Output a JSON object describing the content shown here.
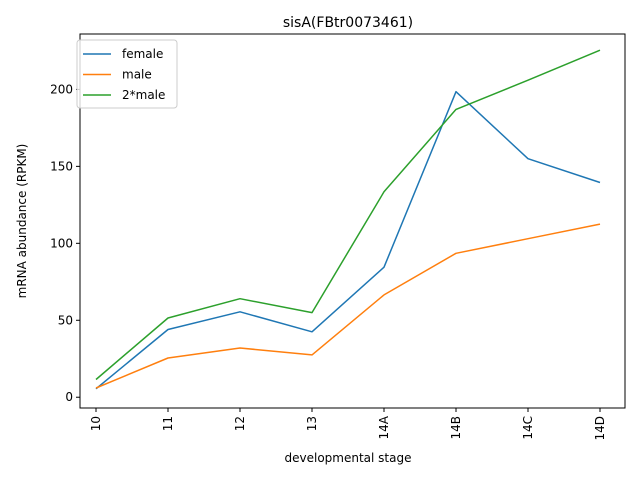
{
  "chart_data": {
    "type": "line",
    "title": "sisA(FBtr0073461)",
    "xlabel": "developmental stage",
    "ylabel": "mRNA abundance (RPKM)",
    "categories": [
      "10",
      "11",
      "12",
      "13",
      "14A",
      "14B",
      "14C",
      "14D"
    ],
    "ylim": [
      -7,
      236
    ],
    "yticks": [
      0,
      50,
      100,
      150,
      200
    ],
    "grid": false,
    "legend_position": "top-left",
    "series": [
      {
        "name": "female",
        "color": "#1f77b4",
        "values": [
          5.5,
          44,
          55.5,
          42.5,
          84.5,
          198.5,
          155,
          139.5
        ]
      },
      {
        "name": "male",
        "color": "#ff7f0e",
        "values": [
          6,
          25.5,
          32,
          27.5,
          66.5,
          93.5,
          103,
          112.5
        ]
      },
      {
        "name": "2*male",
        "color": "#2ca02c",
        "values": [
          11.5,
          51.5,
          64,
          55,
          133.5,
          187,
          206,
          225.5
        ]
      }
    ]
  }
}
